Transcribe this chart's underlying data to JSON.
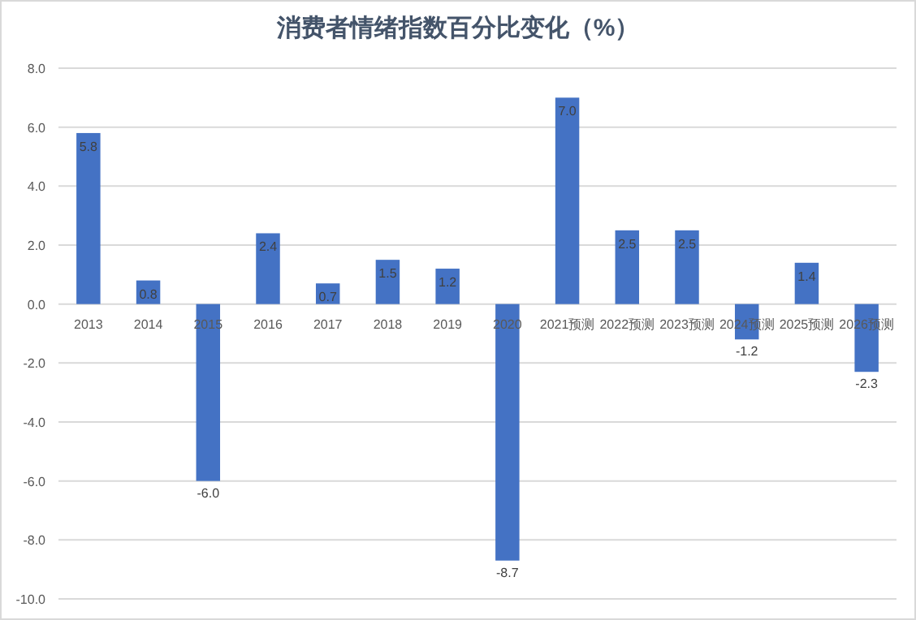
{
  "chart_data": {
    "type": "bar",
    "title": "消费者情绪指数百分比变化（%）",
    "categories": [
      "2013",
      "2014",
      "2015",
      "2016",
      "2017",
      "2018",
      "2019",
      "2020",
      "2021预测",
      "2022预测",
      "2023预测",
      "2024预测",
      "2025预测",
      "2026预测"
    ],
    "values": [
      5.8,
      0.8,
      -6.0,
      2.4,
      0.7,
      1.5,
      1.2,
      -8.7,
      7.0,
      2.5,
      2.5,
      -1.2,
      1.4,
      -2.3
    ],
    "value_labels": [
      "5.8",
      "0.8",
      "-6.0",
      "2.4",
      "0.7",
      "1.5",
      "1.2",
      "-8.7",
      "7.0",
      "2.5",
      "2.5",
      "-1.2",
      "1.4",
      "-2.3"
    ],
    "color": "#4472c4",
    "ylim": [
      -10,
      8
    ],
    "yticks": [
      {
        "value": -10,
        "label": "-10.0"
      },
      {
        "value": -8,
        "label": "-8.0"
      },
      {
        "value": -6,
        "label": "-6.0"
      },
      {
        "value": -4,
        "label": "-4.0"
      },
      {
        "value": -2,
        "label": "-2.0"
      },
      {
        "value": 0,
        "label": "0.0"
      },
      {
        "value": 2,
        "label": "2.0"
      },
      {
        "value": 4,
        "label": "4.0"
      },
      {
        "value": 6,
        "label": "6.0"
      },
      {
        "value": 8,
        "label": "8.0"
      }
    ],
    "grid": "y"
  }
}
